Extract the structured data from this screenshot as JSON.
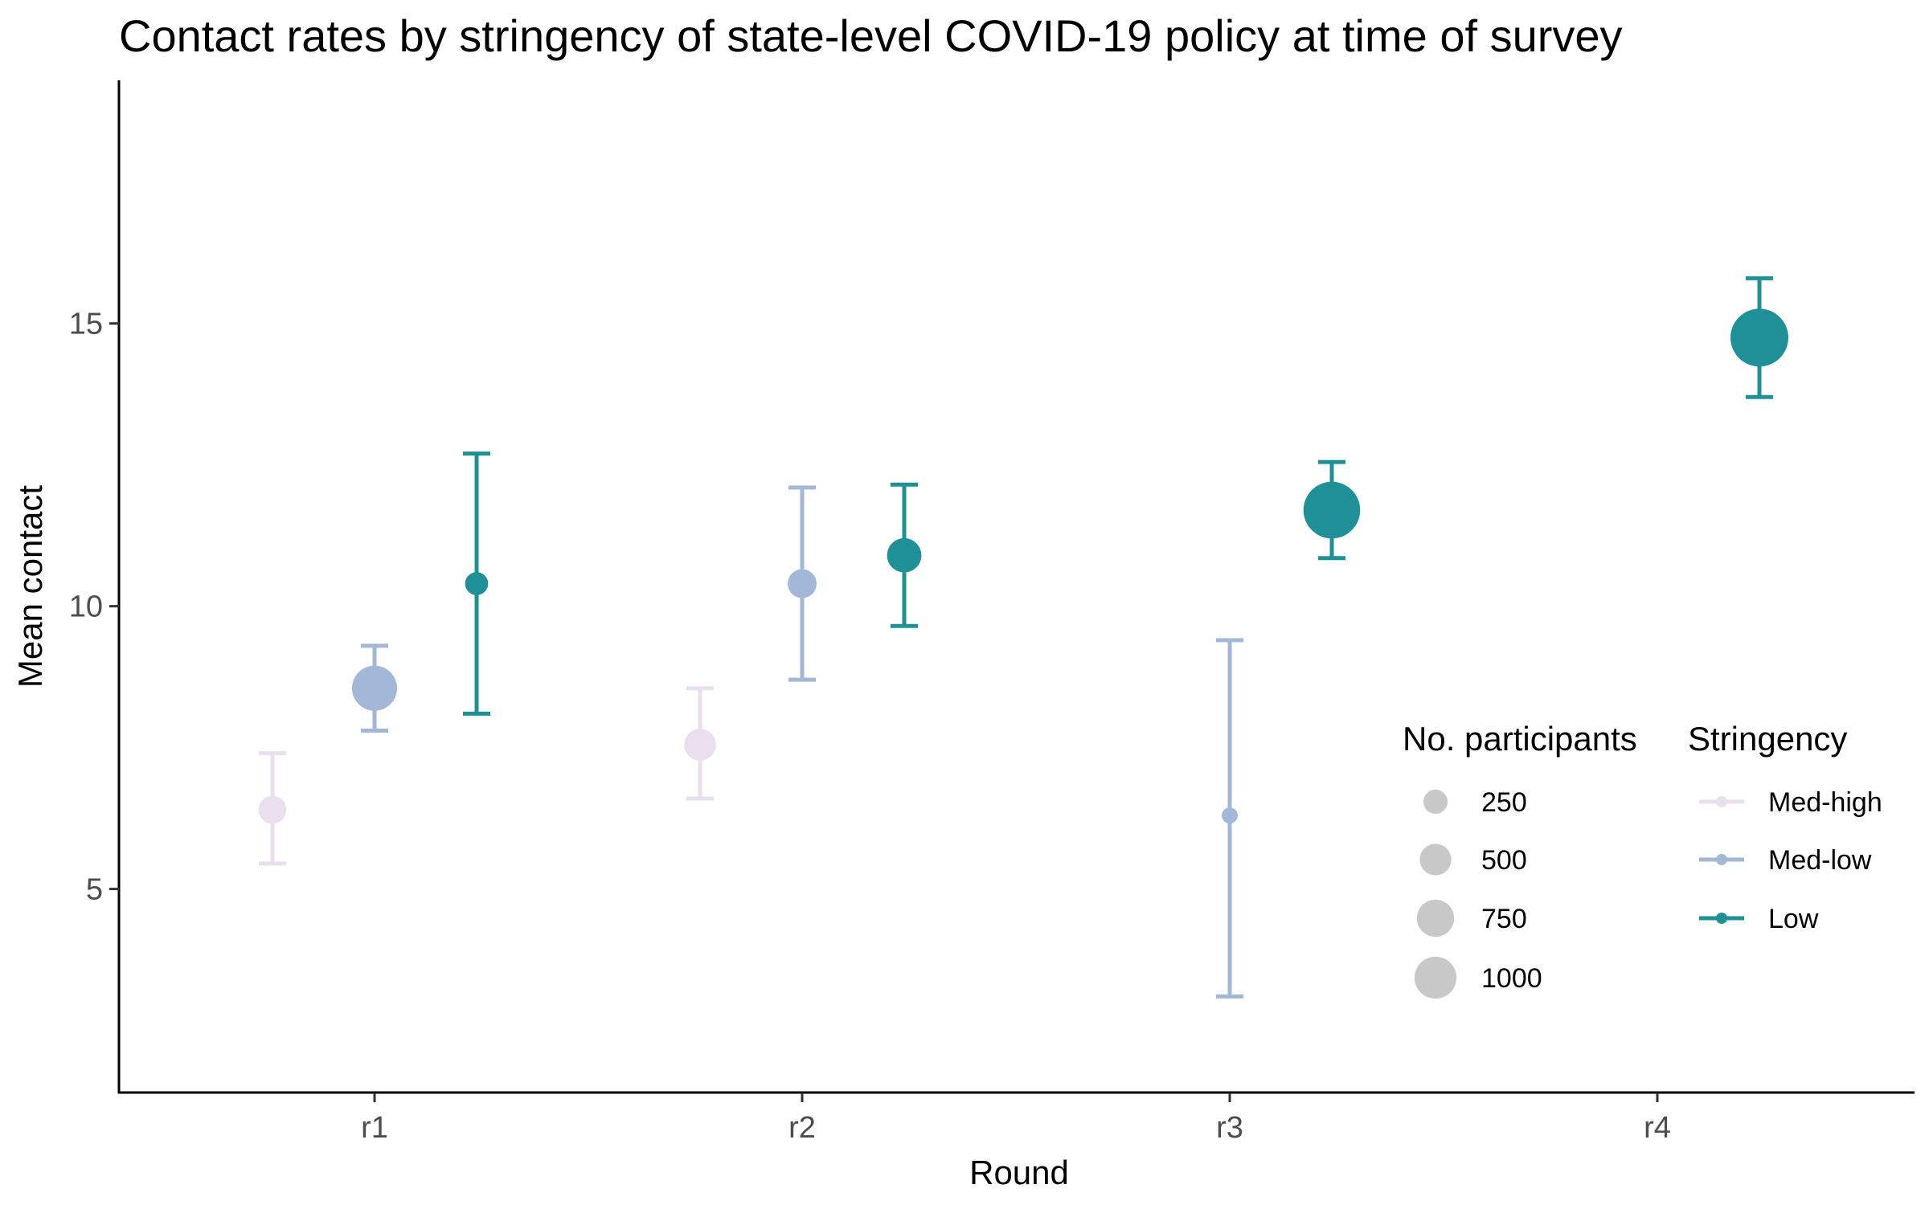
{
  "chart_data": {
    "type": "scatter",
    "title": "Contact rates by stringency of state-level COVID-19 policy at time of survey",
    "xlabel": "Round",
    "ylabel": "Mean contact",
    "categories": [
      "r1",
      "r2",
      "r3",
      "r4"
    ],
    "y_ticks": [
      "5",
      "10",
      "15"
    ],
    "y_tick_values": [
      5,
      10,
      15
    ],
    "ylim": [
      1.4,
      19.3
    ],
    "grid": false,
    "legend_position": "bottom-right",
    "size_legend": {
      "title": "No. participants",
      "labels": [
        "250",
        "500",
        "750",
        "1000"
      ],
      "values": [
        250,
        500,
        750,
        1000
      ]
    },
    "color_legend": {
      "title": "Stringency",
      "labels": [
        "Med-high",
        "Med-low",
        "Low"
      ],
      "colors": [
        "#EADFEF",
        "#A3B7D9",
        "#1F9196"
      ]
    },
    "series": [
      {
        "name": "Med-high",
        "color": "#EADFEF",
        "points": [
          {
            "category": "r1",
            "mean": 6.4,
            "lower": 5.45,
            "upper": 7.4,
            "participants": 200
          },
          {
            "category": "r2",
            "mean": 7.55,
            "lower": 6.6,
            "upper": 8.55,
            "participants": 280
          }
        ]
      },
      {
        "name": "Med-low",
        "color": "#A3B7D9",
        "points": [
          {
            "category": "r1",
            "mean": 8.55,
            "lower": 7.8,
            "upper": 9.3,
            "participants": 650
          },
          {
            "category": "r2",
            "mean": 10.4,
            "lower": 8.7,
            "upper": 12.1,
            "participants": 220
          },
          {
            "category": "r3",
            "mean": 6.3,
            "lower": 3.1,
            "upper": 9.4,
            "participants": 40
          }
        ]
      },
      {
        "name": "Low",
        "color": "#1F9196",
        "points": [
          {
            "category": "r1",
            "mean": 10.4,
            "lower": 8.1,
            "upper": 12.7,
            "participants": 120
          },
          {
            "category": "r2",
            "mean": 10.9,
            "lower": 9.65,
            "upper": 12.15,
            "participants": 340
          },
          {
            "category": "r3",
            "mean": 11.7,
            "lower": 10.85,
            "upper": 12.55,
            "participants": 1100
          },
          {
            "category": "r4",
            "mean": 14.75,
            "lower": 13.7,
            "upper": 15.8,
            "participants": 1150
          }
        ]
      }
    ]
  }
}
